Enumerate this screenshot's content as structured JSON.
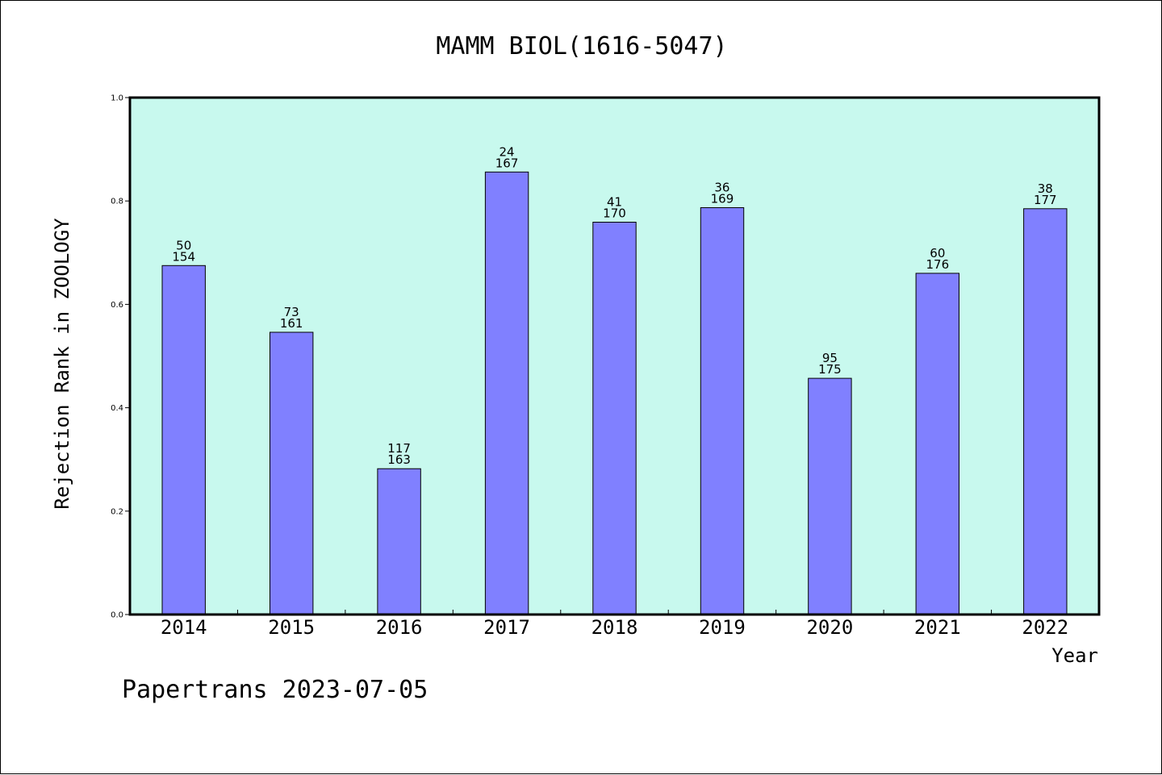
{
  "chart_data": {
    "type": "bar",
    "title": "MAMM BIOL(1616-5047)",
    "xlabel": "Year",
    "ylabel": "Rejection Rank in ZOOLOGY",
    "ylim": [
      0,
      1.0
    ],
    "yticks": [
      0.0,
      0.2,
      0.4,
      0.6,
      0.8,
      1.0
    ],
    "ytick_labels": [
      "0.0",
      "0.2",
      "0.4",
      "0.6",
      "0.8",
      "1.0"
    ],
    "categories": [
      "2014",
      "2015",
      "2016",
      "2017",
      "2018",
      "2019",
      "2020",
      "2021",
      "2022"
    ],
    "values": [
      0.675,
      0.546,
      0.282,
      0.856,
      0.759,
      0.787,
      0.457,
      0.66,
      0.785
    ],
    "rank": [
      50,
      73,
      117,
      24,
      41,
      36,
      95,
      60,
      38
    ],
    "total": [
      154,
      161,
      163,
      167,
      170,
      169,
      175,
      176,
      177
    ],
    "colors": {
      "plot_background": "#c8f9ee",
      "bar_fill": "#8080ff",
      "bar_stroke": "#000000"
    },
    "grid": false
  },
  "footer": {
    "text": "Papertrans 2023-07-05"
  }
}
